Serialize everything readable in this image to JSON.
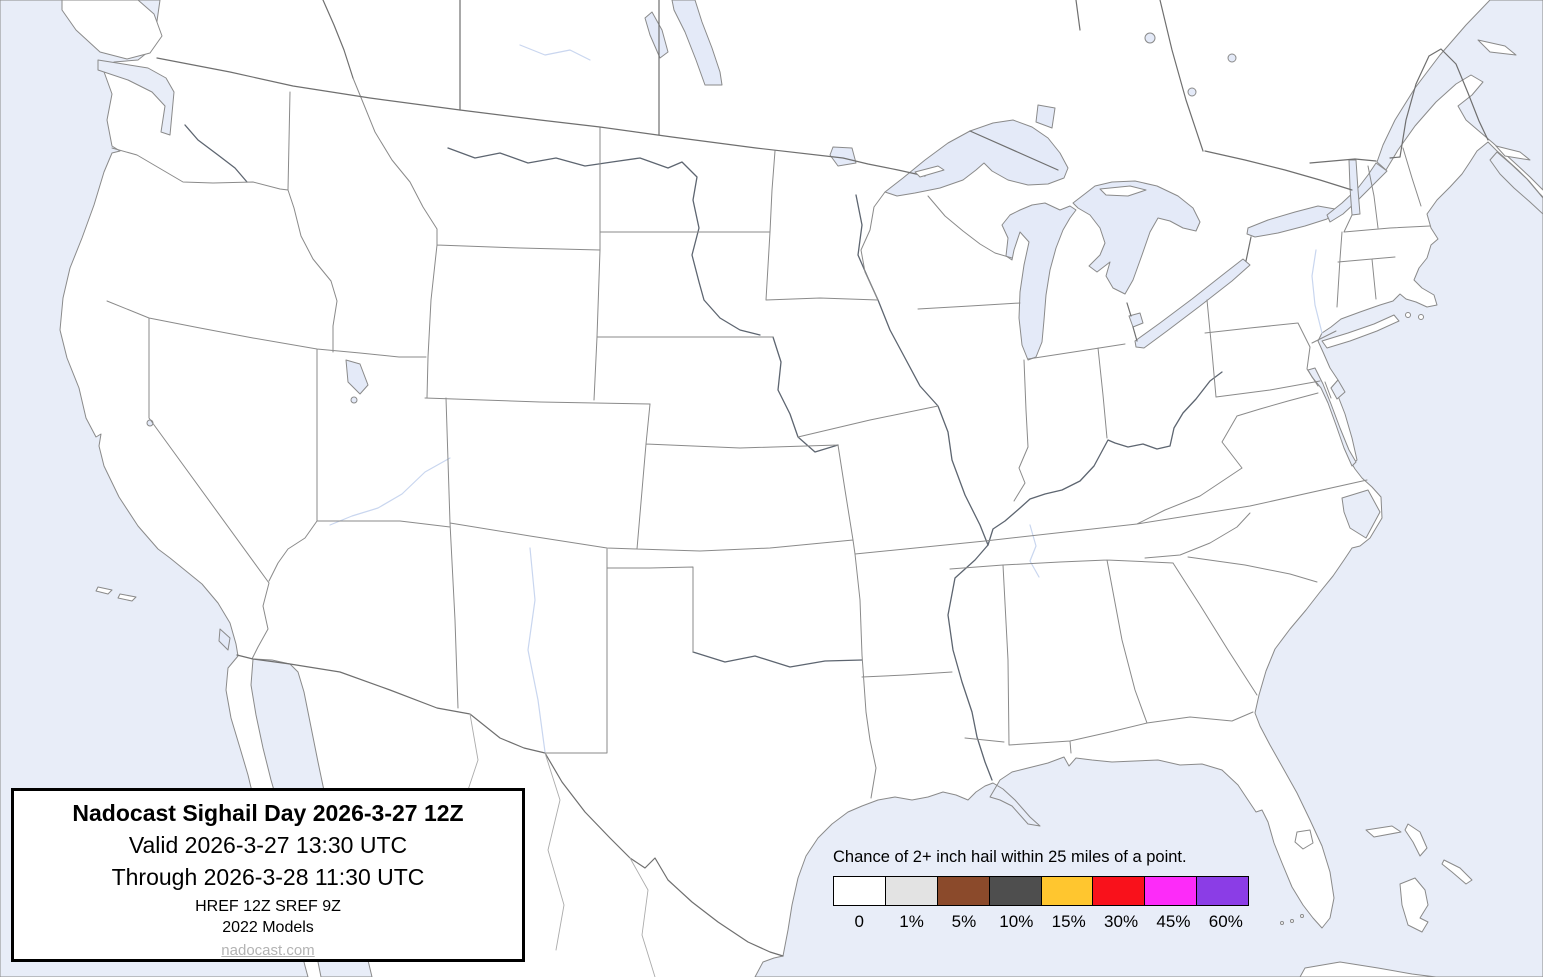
{
  "title_box": {
    "title": "Nadocast Sighail Day 2026-3-27 12Z",
    "valid": "Valid 2026-3-27 13:30 UTC",
    "through": "Through 2026-3-28 11:30 UTC",
    "models_line1": "HREF 12Z SREF 9Z",
    "models_line2": "2022 Models",
    "site": "nadocast.com"
  },
  "legend": {
    "caption": "Chance of 2+ inch hail within 25 miles of a point.",
    "items": [
      {
        "label": "0",
        "color": "#ffffff"
      },
      {
        "label": "1%",
        "color": "#e3e3e3"
      },
      {
        "label": "5%",
        "color": "#8b4a2b"
      },
      {
        "label": "10%",
        "color": "#4e4e4e"
      },
      {
        "label": "15%",
        "color": "#ffc62f"
      },
      {
        "label": "30%",
        "color": "#f9111b"
      },
      {
        "label": "45%",
        "color": "#fd2bf9"
      },
      {
        "label": "60%",
        "color": "#8b3de6"
      }
    ]
  },
  "map": {
    "colors": {
      "water": "#e8edf8",
      "lake": "#e4eaf8",
      "land": "#ffffff",
      "state_border": "#8a8a8a",
      "country_border": "#6f6f6f",
      "river": "#5d6570",
      "faint_river": "#c9d6ef",
      "mexico_border": "#ababab"
    }
  }
}
